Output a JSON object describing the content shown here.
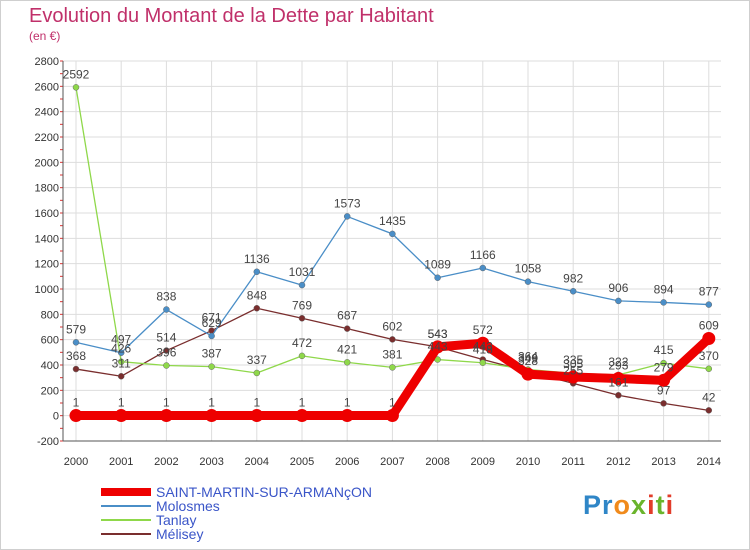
{
  "title": "Evolution du Montant de la Dette par Habitant",
  "subtitle": "(en €)",
  "logo": {
    "text": "Proxiti"
  },
  "chart_data": {
    "type": "line",
    "title": "Evolution du Montant de la Dette par Habitant",
    "subtitle": "(en €)",
    "xlabel": "",
    "ylabel": "",
    "ylim": [
      -200,
      2800
    ],
    "ytick_step": 200,
    "yticks": [
      "-200",
      "0",
      "200",
      "400",
      "600",
      "800",
      "1000",
      "1200",
      "1400",
      "1600",
      "1800",
      "2000",
      "2200",
      "2400",
      "2600",
      "2800"
    ],
    "x": [
      "2000",
      "2001",
      "2002",
      "2003",
      "2004",
      "2005",
      "2006",
      "2007",
      "2008",
      "2009",
      "2010",
      "2011",
      "2012",
      "2013",
      "2014"
    ],
    "grid": true,
    "legend_position": "bottom-left",
    "series": [
      {
        "name": "Mélisey",
        "color": "#7a2e2e",
        "values": [
          368,
          311,
          514,
          671,
          848,
          769,
          687,
          602,
          543,
          443,
          349,
          255,
          161,
          97,
          42
        ],
        "labels": [
          "368",
          "311",
          "514",
          "671",
          "848",
          "769",
          "687",
          "602",
          "543",
          "443",
          "349",
          "255",
          "161",
          "97",
          "42"
        ]
      },
      {
        "name": "Tanlay",
        "color": "#8fd84a",
        "values": [
          2592,
          426,
          396,
          387,
          337,
          472,
          421,
          381,
          443,
          418,
          364,
          335,
          322,
          415,
          370
        ],
        "labels": [
          "2592",
          "426",
          "396",
          "387",
          "337",
          "472",
          "421",
          "381",
          "443",
          "418",
          "364",
          "335",
          "322",
          "415",
          "370"
        ]
      },
      {
        "name": "Molosmes",
        "color": "#4a8ec7",
        "values": [
          579,
          497,
          838,
          629,
          1136,
          1031,
          1573,
          1435,
          1089,
          1166,
          1058,
          982,
          906,
          894,
          877
        ],
        "labels": [
          "579",
          "497",
          "838",
          "629",
          "1136",
          "1031",
          "1573",
          "1435",
          "1089",
          "1166",
          "1058",
          "982",
          "906",
          "894",
          "877"
        ]
      },
      {
        "name": "SAINT-MARTIN-SUR-ARMANçON",
        "color": "#ee0000",
        "values": [
          1,
          1,
          1,
          1,
          1,
          1,
          1,
          1,
          543,
          572,
          328,
          305,
          293,
          279,
          609
        ],
        "labels": [
          "1",
          "1",
          "1",
          "1",
          "1",
          "1",
          "1",
          "1",
          "543",
          "572",
          "328",
          "305",
          "293",
          "279",
          "609"
        ]
      }
    ],
    "legend": [
      {
        "name": "SAINT-MARTIN-SUR-ARMANçON",
        "color": "#ee0000"
      },
      {
        "name": "Molosmes",
        "color": "#4a8ec7"
      },
      {
        "name": "Tanlay",
        "color": "#8fd84a"
      },
      {
        "name": "Mélisey",
        "color": "#7a2e2e"
      }
    ]
  }
}
